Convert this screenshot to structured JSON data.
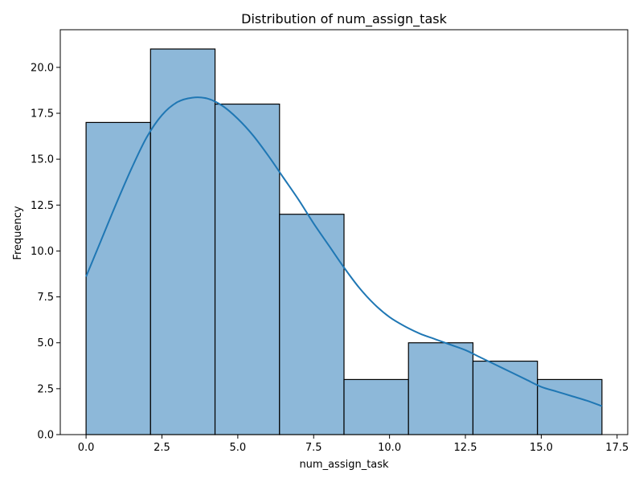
{
  "chart_data": {
    "type": "bar",
    "title": "Distribution of num_assign_task",
    "xlabel": "num_assign_task",
    "ylabel": "Frequency",
    "xlim": [
      -0.85,
      17.85
    ],
    "ylim": [
      0,
      22.05
    ],
    "xticks": [
      0.0,
      2.5,
      5.0,
      7.5,
      10.0,
      12.5,
      15.0,
      17.5
    ],
    "xtick_labels": [
      "0.0",
      "2.5",
      "5.0",
      "7.5",
      "10.0",
      "12.5",
      "15.0",
      "17.5"
    ],
    "yticks": [
      0.0,
      2.5,
      5.0,
      7.5,
      10.0,
      12.5,
      15.0,
      17.5,
      20.0
    ],
    "ytick_labels": [
      "0.0",
      "2.5",
      "5.0",
      "7.5",
      "10.0",
      "12.5",
      "15.0",
      "17.5",
      "20.0"
    ],
    "bin_edges": [
      0,
      2.125,
      4.25,
      6.375,
      8.5,
      10.625,
      12.75,
      14.875,
      17
    ],
    "values": [
      17,
      21,
      18,
      12,
      3,
      5,
      4,
      3
    ],
    "kde": {
      "x": [
        0.0,
        0.5,
        1.0,
        1.5,
        2.0,
        2.5,
        3.0,
        3.5,
        4.0,
        4.5,
        5.0,
        5.5,
        6.0,
        6.5,
        7.0,
        7.5,
        8.0,
        8.5,
        9.0,
        9.5,
        10.0,
        10.5,
        11.0,
        11.5,
        12.0,
        12.5,
        13.0,
        13.5,
        14.0,
        14.5,
        15.0,
        15.5,
        16.0,
        16.5,
        17.0
      ],
      "y": [
        8.6,
        10.6,
        12.6,
        14.5,
        16.2,
        17.4,
        18.1,
        18.35,
        18.3,
        17.9,
        17.2,
        16.3,
        15.2,
        14.0,
        12.8,
        11.5,
        10.3,
        9.1,
        8.0,
        7.1,
        6.4,
        5.9,
        5.5,
        5.2,
        4.9,
        4.6,
        4.2,
        3.8,
        3.4,
        3.0,
        2.6,
        2.35,
        2.1,
        1.85,
        1.55
      ]
    },
    "grid": false,
    "bar_fill": "#8db8d9",
    "bar_edge": "#000000",
    "kde_color": "#1f77b4"
  }
}
